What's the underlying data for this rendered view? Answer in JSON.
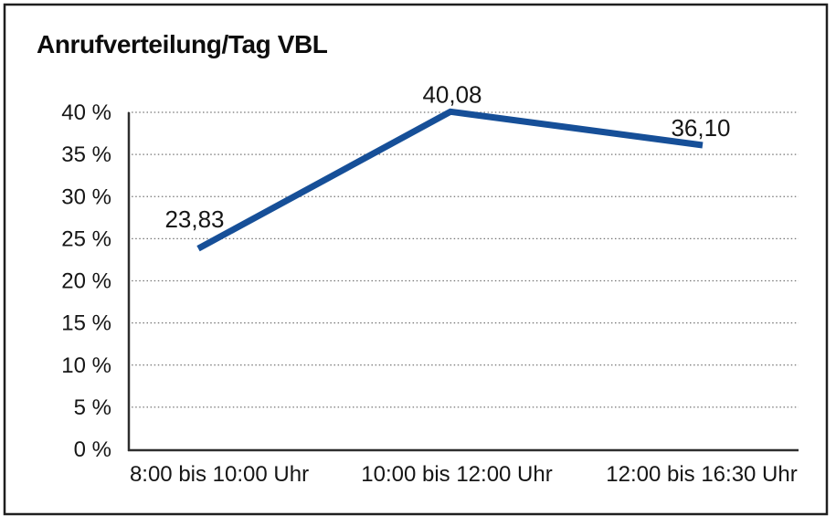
{
  "chart_data": {
    "type": "line",
    "title": "Anrufverteilung/Tag VBL",
    "categories": [
      "8:00 bis 10:00 Uhr",
      "10:00 bis 12:00 Uhr",
      "12:00 bis 16:30 Uhr"
    ],
    "values": [
      23.83,
      40.08,
      36.1
    ],
    "value_labels": [
      "23,83",
      "40,08",
      "36,10"
    ],
    "y_ticks": [
      "0 %",
      "5 %",
      "10 %",
      "15 %",
      "20 %",
      "25 %",
      "30 %",
      "35 %",
      "40 %"
    ],
    "ylim": [
      0,
      40
    ],
    "y_step": 5,
    "xlabel": "",
    "ylabel": "",
    "grid": "horizontal-dotted",
    "legend": "none",
    "line_color": "#164F98",
    "gridline_color": "#757575",
    "axis_color": "#2e2e2e",
    "text_color": "#161616",
    "background_color": "#ffffff",
    "border_color": "#1f1f1f"
  }
}
